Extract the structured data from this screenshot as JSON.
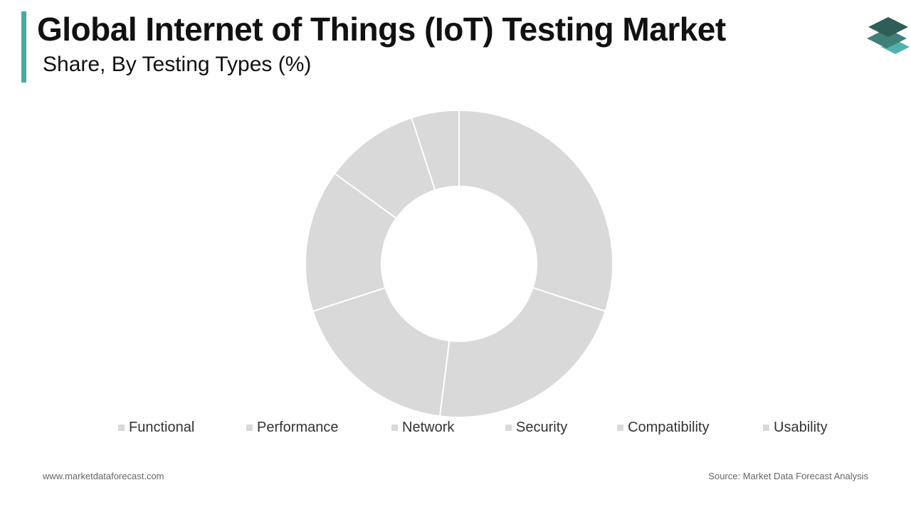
{
  "header": {
    "title": "Global Internet of Things (IoT) Testing Market",
    "subtitle": "Share, By Testing Types (%)"
  },
  "colors": {
    "accent": "#4aa9a3",
    "slice": "#d9d9d9",
    "slice_border": "#ffffff",
    "legend_swatch": "#d9d9d9",
    "logo_top": "#2e5e57",
    "logo_mid": "#3f8079",
    "logo_bottom": "#4fb3ad"
  },
  "logo": {
    "icon": "stacked-layers-logo-icon"
  },
  "chart_data": {
    "type": "pie",
    "donut": true,
    "title": "",
    "categories": [
      "Functional",
      "Performance",
      "Network",
      "Security",
      "Compatibility",
      "Usability"
    ],
    "values": [
      30,
      22,
      18,
      15,
      10,
      5
    ],
    "unit": "%",
    "start_angle_deg": 0,
    "direction": "clockwise",
    "legend_position": "bottom"
  },
  "legend": {
    "items": [
      "Functional",
      "Performance",
      "Network",
      "Security",
      "Compatibility",
      "Usability"
    ]
  },
  "footer": {
    "website": "www.marketdataforecast.com",
    "source": "Source: Market Data Forecast Analysis"
  }
}
